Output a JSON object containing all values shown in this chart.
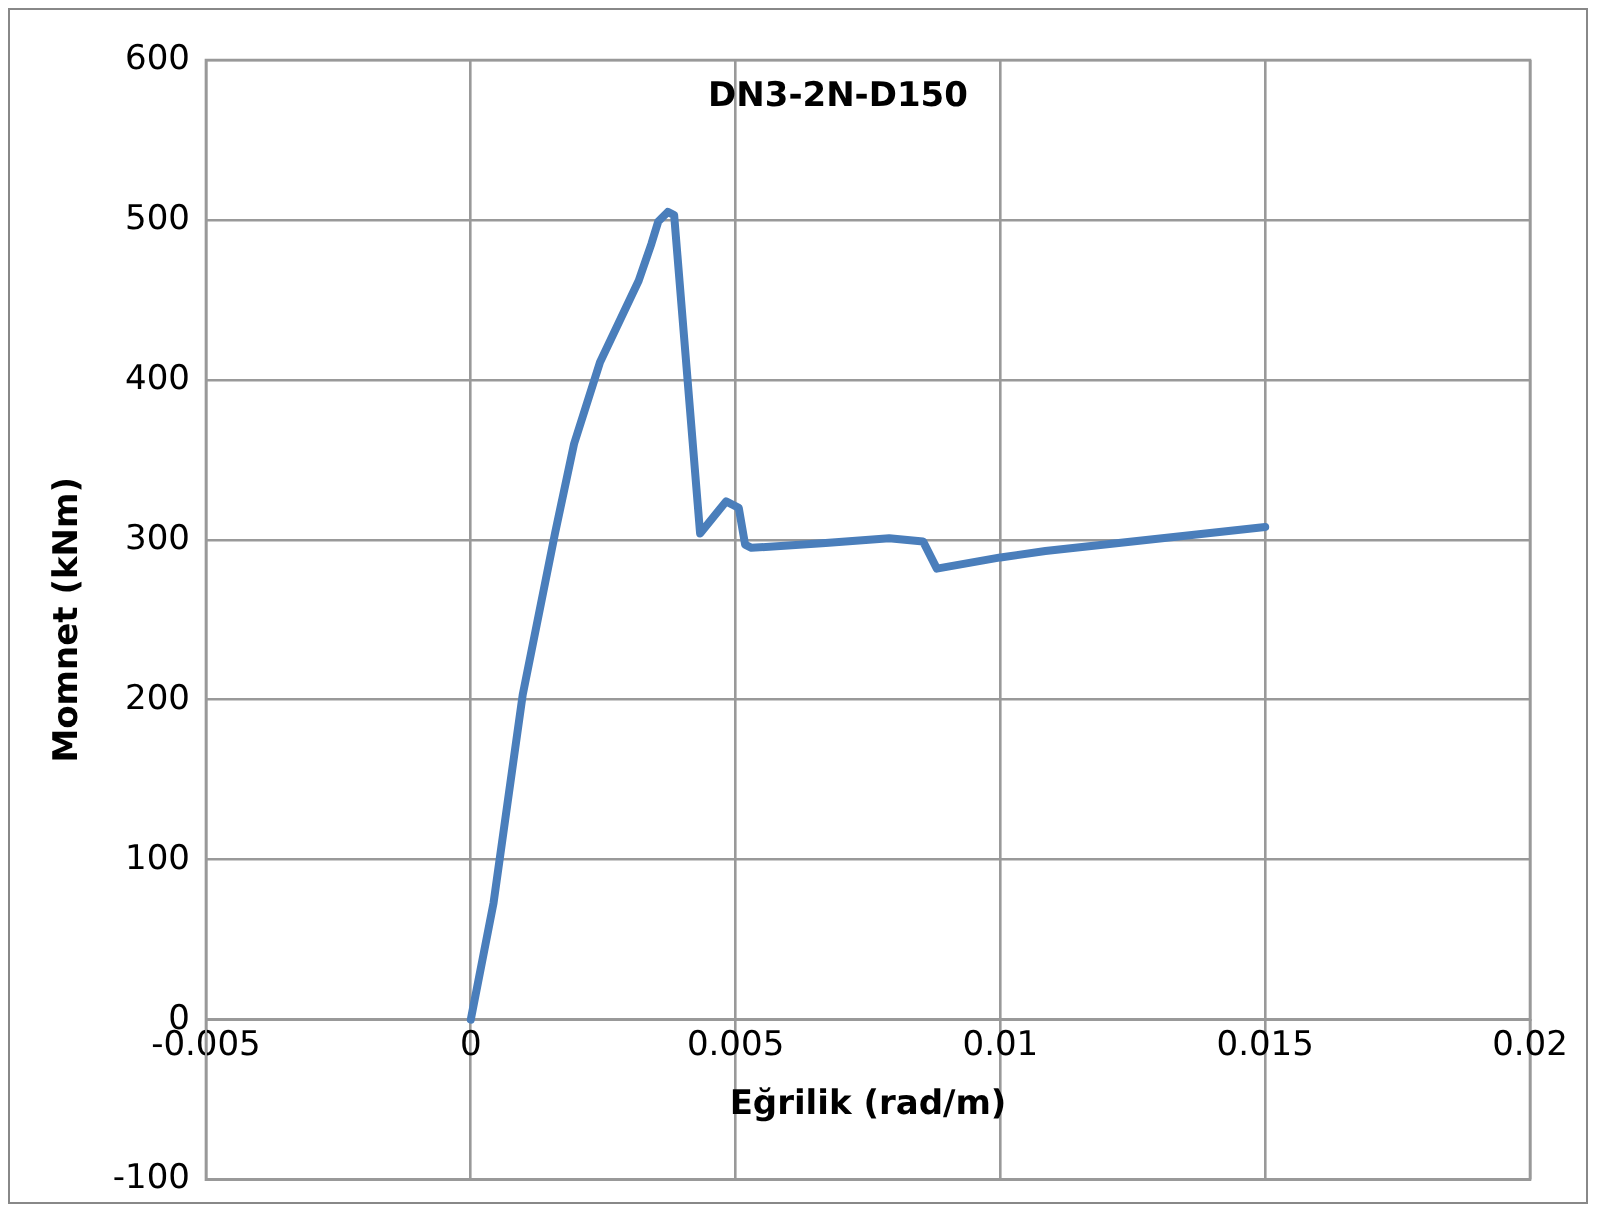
{
  "chart_data": {
    "type": "line",
    "title": "DN3-2N-D150",
    "xlabel": "Eğrilik (rad/m)",
    "ylabel": "Momnet (kNm)",
    "series": [
      {
        "color": "#4a7ebb",
        "x": [
          0,
          0.00043,
          0.00098,
          0.00159,
          0.00195,
          0.00244,
          0.00317,
          0.00341,
          0.00354,
          0.00372,
          0.00384,
          0.00433,
          0.00482,
          0.00506,
          0.00518,
          0.0053,
          0.0067,
          0.0079,
          0.00854,
          0.0088,
          0.01,
          0.01085,
          0.015
        ],
        "values": [
          0,
          73,
          203,
          304,
          360,
          411,
          462,
          485,
          499,
          505,
          503,
          304,
          324,
          320,
          297,
          295,
          298,
          301,
          299,
          282,
          289,
          293,
          308
        ]
      }
    ],
    "xlim": [
      -0.005,
      0.02
    ],
    "xticks": [
      -0.005,
      0,
      0.005,
      0.01,
      0.015,
      0.02
    ],
    "ylim": [
      -100,
      600
    ],
    "yticks": [
      -100,
      0,
      100,
      200,
      300,
      400,
      500,
      600
    ],
    "grid": true,
    "legend": false,
    "marker": "none",
    "line_style": "solid"
  }
}
